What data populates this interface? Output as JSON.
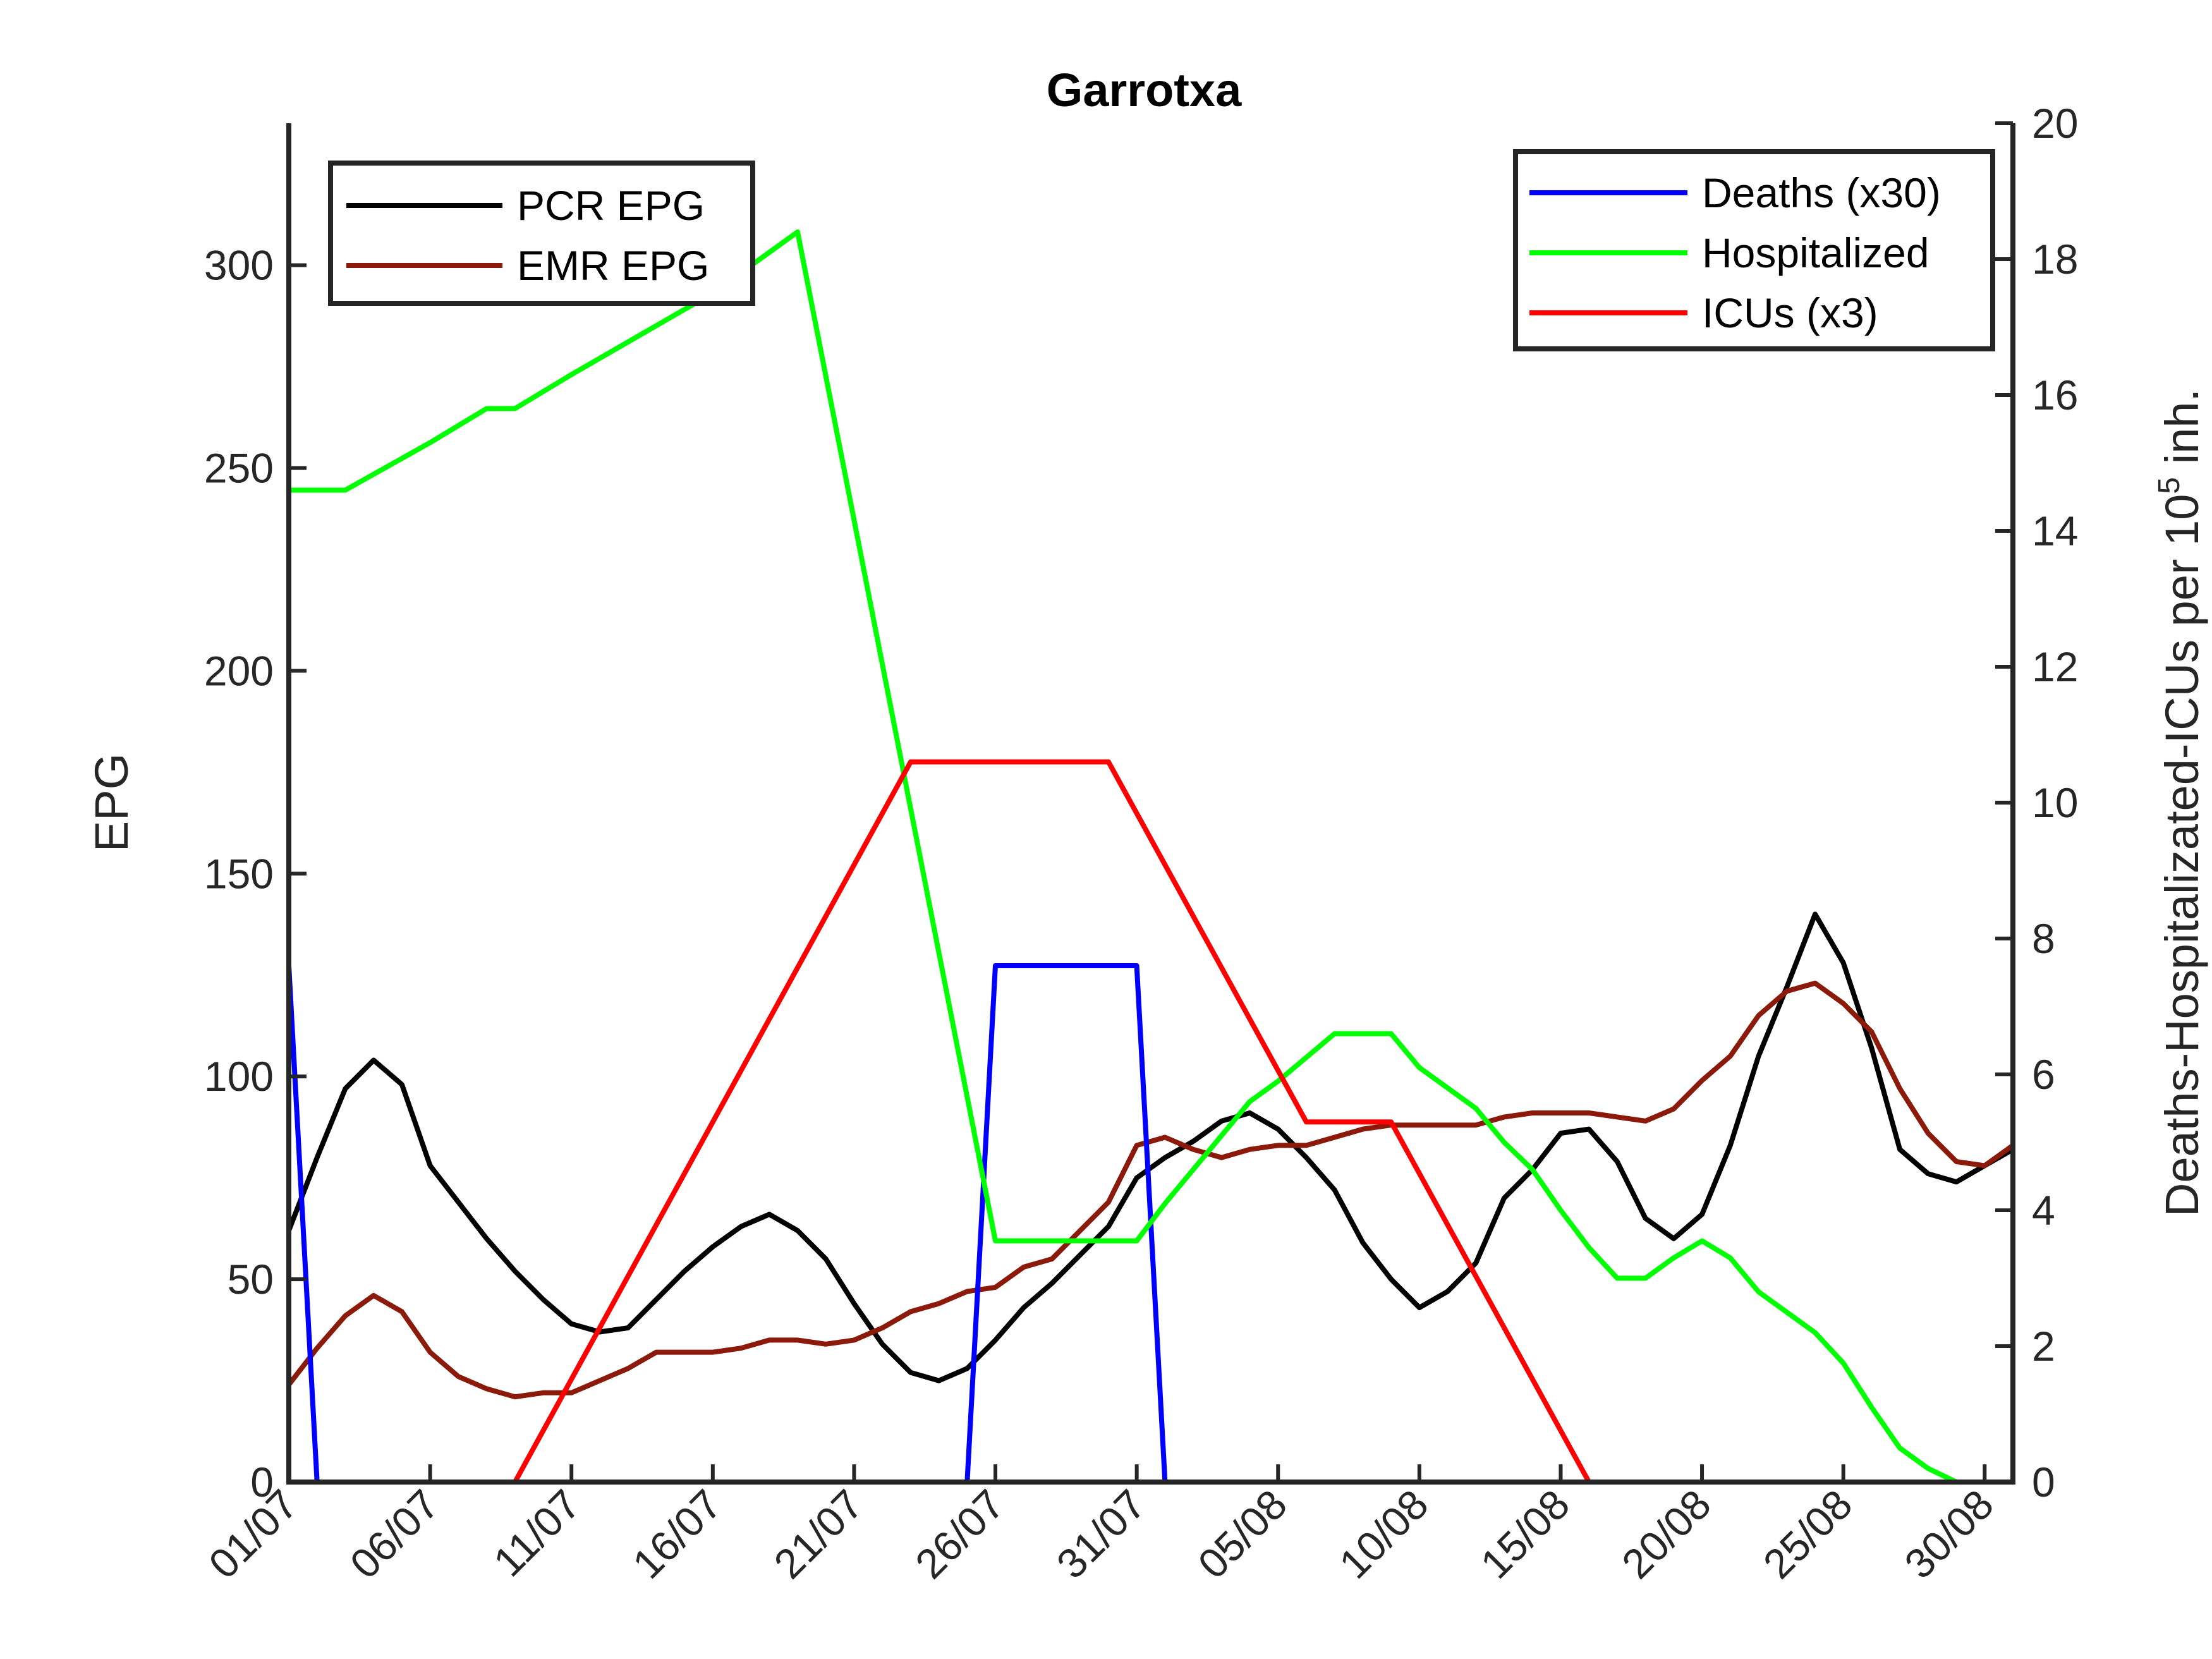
{
  "chart_data": {
    "type": "line",
    "title": "Garrotxa",
    "xlabel": "",
    "ylabel_left": "EPG",
    "ylabel_right": {
      "base": "Deaths-Hospitalizated-ICUs per 10",
      "sup": "5",
      "tail": " inh."
    },
    "x_ticks": [
      "01/07",
      "06/07",
      "11/07",
      "16/07",
      "21/07",
      "26/07",
      "31/07",
      "05/08",
      "10/08",
      "15/08",
      "20/08",
      "25/08",
      "30/08"
    ],
    "x_tick_days": [
      0,
      5,
      10,
      15,
      20,
      25,
      30,
      35,
      40,
      45,
      50,
      55,
      60
    ],
    "xlim": [
      0,
      61
    ],
    "ylim_left": [
      0,
      335
    ],
    "yticks_left": [
      0,
      50,
      100,
      150,
      200,
      250,
      300
    ],
    "ylim_right": [
      0,
      20
    ],
    "yticks_right": [
      0,
      2,
      4,
      6,
      8,
      10,
      12,
      14,
      16,
      18,
      20
    ],
    "legend_left": {
      "position": "top-left",
      "entries": [
        "PCR EPG",
        "EMR EPG"
      ]
    },
    "legend_right": {
      "position": "top-right",
      "entries": [
        "Deaths (x30)",
        "Hospitalized",
        "ICUs (x3)"
      ]
    },
    "series": [
      {
        "name": "PCR EPG",
        "axis": "left",
        "color": "#000000",
        "x": [
          0,
          1,
          2,
          3,
          4,
          5,
          6,
          7,
          8,
          9,
          10,
          11,
          12,
          13,
          14,
          15,
          16,
          17,
          18,
          19,
          20,
          21,
          22,
          23,
          24,
          25,
          26,
          27,
          28,
          29,
          30,
          31,
          32,
          33,
          34,
          35,
          36,
          37,
          38,
          39,
          40,
          41,
          42,
          43,
          44,
          45,
          46,
          47,
          48,
          49,
          50,
          51,
          52,
          53,
          54,
          55,
          56,
          57,
          58,
          59,
          60,
          61
        ],
        "y": [
          62,
          80,
          97,
          104,
          98,
          78,
          69,
          60,
          52,
          45,
          39,
          37,
          38,
          45,
          52,
          58,
          63,
          66,
          62,
          55,
          44,
          34,
          27,
          25,
          28,
          35,
          43,
          49,
          56,
          63,
          75,
          80,
          84,
          89,
          91,
          87,
          80,
          72,
          59,
          50,
          43,
          47,
          54,
          70,
          77,
          86,
          87,
          79,
          65,
          60,
          66,
          83,
          105,
          122,
          140,
          128,
          107,
          82,
          76,
          74,
          78,
          82
        ]
      },
      {
        "name": "EMR EPG",
        "axis": "left",
        "color": "#8b1a0a",
        "x": [
          0,
          1,
          2,
          3,
          4,
          5,
          6,
          7,
          8,
          9,
          10,
          11,
          12,
          13,
          14,
          15,
          16,
          17,
          18,
          19,
          20,
          21,
          22,
          23,
          24,
          25,
          26,
          27,
          28,
          29,
          30,
          31,
          32,
          33,
          34,
          35,
          36,
          37,
          38,
          39,
          40,
          41,
          42,
          43,
          44,
          45,
          46,
          47,
          48,
          49,
          50,
          51,
          52,
          53,
          54,
          55,
          56,
          57,
          58,
          59,
          60,
          61
        ],
        "y": [
          24,
          33,
          41,
          46,
          42,
          32,
          26,
          23,
          21,
          22,
          22,
          25,
          28,
          32,
          32,
          32,
          33,
          35,
          35,
          34,
          35,
          38,
          42,
          44,
          47,
          48,
          53,
          55,
          62,
          69,
          83,
          85,
          82,
          80,
          82,
          83,
          83,
          85,
          87,
          88,
          88,
          88,
          88,
          90,
          91,
          91,
          91,
          90,
          89,
          92,
          99,
          105,
          115,
          121,
          123,
          118,
          111,
          97,
          86,
          79,
          78,
          83
        ]
      },
      {
        "name": "Deaths (x30)",
        "axis": "right",
        "color": "#0000ff",
        "x": [
          0,
          1,
          2,
          23,
          24,
          25,
          26,
          27,
          28,
          29,
          30,
          31,
          32,
          61
        ],
        "y": [
          7.6,
          0,
          0,
          0,
          0,
          7.6,
          7.6,
          7.6,
          7.6,
          7.6,
          7.6,
          0,
          0,
          0
        ]
      },
      {
        "name": "Hospitalized",
        "axis": "right",
        "color": "#00ff00",
        "x": [
          0,
          2,
          5,
          7,
          8,
          10,
          15,
          18,
          25,
          26,
          27,
          28,
          29,
          30,
          31,
          32,
          33,
          34,
          35,
          36,
          37,
          38,
          39,
          40,
          41,
          42,
          43,
          44,
          45,
          46,
          47,
          48,
          49,
          50,
          51,
          52,
          53,
          54,
          55,
          56,
          57,
          58,
          59,
          60,
          61
        ],
        "y": [
          14.6,
          14.6,
          15.3,
          15.8,
          15.8,
          16.3,
          17.5,
          18.4,
          3.55,
          3.55,
          3.55,
          3.55,
          3.55,
          3.55,
          4.1,
          4.6,
          5.1,
          5.6,
          5.9,
          6.25,
          6.6,
          6.6,
          6.6,
          6.1,
          5.8,
          5.5,
          5.0,
          4.6,
          4.0,
          3.45,
          3.0,
          3.0,
          3.3,
          3.55,
          3.3,
          2.8,
          2.5,
          2.2,
          1.75,
          1.1,
          0.5,
          0.2,
          0,
          0,
          0
        ]
      },
      {
        "name": "ICUs (x3)",
        "axis": "right",
        "color": "#ff0000",
        "x": [
          0,
          8,
          22,
          29,
          36,
          39,
          46,
          61
        ],
        "y": [
          0,
          0,
          10.6,
          10.6,
          5.3,
          5.3,
          0,
          0
        ]
      }
    ]
  }
}
